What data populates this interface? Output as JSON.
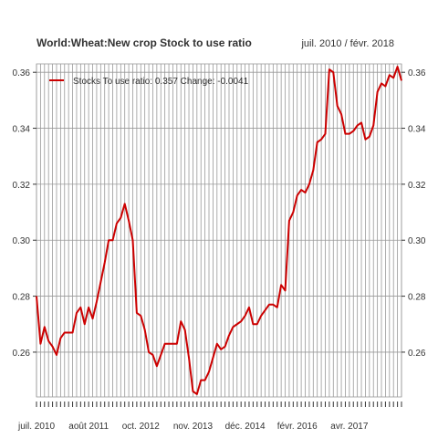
{
  "chart_data": {
    "type": "line",
    "title": "World:Wheat:New crop Stock to use ratio",
    "date_range": "juil. 2010 / févr. 2018",
    "legend": {
      "entry": "Stocks To use ratio: 0.357  Change: -0.0041",
      "placement": "top-left"
    },
    "colors": {
      "series": "#cc0000",
      "grid": "#999999",
      "axis": "#333333"
    },
    "xlabel": "",
    "ylabel": "",
    "x_tick_labels": [
      "juil. 2010",
      "août 2011",
      "oct. 2012",
      "nov. 2013",
      "déc. 2014",
      "févr. 2016",
      "avr. 2017"
    ],
    "y_ticks": [
      0.26,
      0.28,
      0.3,
      0.32,
      0.34,
      0.36
    ],
    "y_tick_labels": [
      "0.26",
      "0.28",
      "0.30",
      "0.32",
      "0.34",
      "0.36"
    ],
    "ylim": [
      0.244,
      0.363
    ],
    "xlim": [
      "2010-07",
      "2018-02"
    ],
    "grid": true,
    "right_axis": true,
    "series": [
      {
        "name": "Stocks To use ratio",
        "points": [
          [
            "2010-07",
            0.28
          ],
          [
            "2010-08",
            0.263
          ],
          [
            "2010-09",
            0.269
          ],
          [
            "2010-10",
            0.264
          ],
          [
            "2010-11",
            0.262
          ],
          [
            "2010-12",
            0.259
          ],
          [
            "2011-01",
            0.265
          ],
          [
            "2011-02",
            0.267
          ],
          [
            "2011-03",
            0.267
          ],
          [
            "2011-04",
            0.267
          ],
          [
            "2011-05",
            0.274
          ],
          [
            "2011-06",
            0.276
          ],
          [
            "2011-07",
            0.27
          ],
          [
            "2011-08",
            0.276
          ],
          [
            "2011-09",
            0.272
          ],
          [
            "2011-10",
            0.278
          ],
          [
            "2011-11",
            0.285
          ],
          [
            "2011-12",
            0.292
          ],
          [
            "2012-01",
            0.3
          ],
          [
            "2012-02",
            0.3
          ],
          [
            "2012-03",
            0.306
          ],
          [
            "2012-04",
            0.308
          ],
          [
            "2012-05",
            0.313
          ],
          [
            "2012-06",
            0.307
          ],
          [
            "2012-07",
            0.3
          ],
          [
            "2012-08",
            0.274
          ],
          [
            "2012-09",
            0.273
          ],
          [
            "2012-10",
            0.268
          ],
          [
            "2012-11",
            0.26
          ],
          [
            "2012-12",
            0.259
          ],
          [
            "2013-01",
            0.255
          ],
          [
            "2013-02",
            0.259
          ],
          [
            "2013-03",
            0.263
          ],
          [
            "2013-04",
            0.263
          ],
          [
            "2013-05",
            0.263
          ],
          [
            "2013-06",
            0.263
          ],
          [
            "2013-07",
            0.271
          ],
          [
            "2013-08",
            0.268
          ],
          [
            "2013-09",
            0.258
          ],
          [
            "2013-10",
            0.246
          ],
          [
            "2013-11",
            0.245
          ],
          [
            "2013-12",
            0.25
          ],
          [
            "2014-01",
            0.25
          ],
          [
            "2014-02",
            0.253
          ],
          [
            "2014-03",
            0.258
          ],
          [
            "2014-04",
            0.263
          ],
          [
            "2014-05",
            0.261
          ],
          [
            "2014-06",
            0.262
          ],
          [
            "2014-07",
            0.266
          ],
          [
            "2014-08",
            0.269
          ],
          [
            "2014-09",
            0.27
          ],
          [
            "2014-10",
            0.271
          ],
          [
            "2014-11",
            0.273
          ],
          [
            "2014-12",
            0.276
          ],
          [
            "2015-01",
            0.27
          ],
          [
            "2015-02",
            0.27
          ],
          [
            "2015-03",
            0.273
          ],
          [
            "2015-04",
            0.275
          ],
          [
            "2015-05",
            0.277
          ],
          [
            "2015-06",
            0.277
          ],
          [
            "2015-07",
            0.276
          ],
          [
            "2015-08",
            0.284
          ],
          [
            "2015-09",
            0.282
          ],
          [
            "2015-10",
            0.307
          ],
          [
            "2015-11",
            0.31
          ],
          [
            "2015-12",
            0.316
          ],
          [
            "2016-01",
            0.318
          ],
          [
            "2016-02",
            0.317
          ],
          [
            "2016-03",
            0.32
          ],
          [
            "2016-04",
            0.325
          ],
          [
            "2016-05",
            0.335
          ],
          [
            "2016-06",
            0.336
          ],
          [
            "2016-07",
            0.338
          ],
          [
            "2016-08",
            0.361
          ],
          [
            "2016-09",
            0.36
          ],
          [
            "2016-10",
            0.348
          ],
          [
            "2016-11",
            0.345
          ],
          [
            "2016-12",
            0.338
          ],
          [
            "2017-01",
            0.338
          ],
          [
            "2017-02",
            0.339
          ],
          [
            "2017-03",
            0.341
          ],
          [
            "2017-04",
            0.342
          ],
          [
            "2017-05",
            0.336
          ],
          [
            "2017-06",
            0.337
          ],
          [
            "2017-07",
            0.341
          ],
          [
            "2017-08",
            0.353
          ],
          [
            "2017-09",
            0.356
          ],
          [
            "2017-10",
            0.355
          ],
          [
            "2017-11",
            0.359
          ],
          [
            "2017-12",
            0.358
          ],
          [
            "2018-01",
            0.362
          ],
          [
            "2018-02",
            0.357
          ]
        ]
      }
    ]
  }
}
